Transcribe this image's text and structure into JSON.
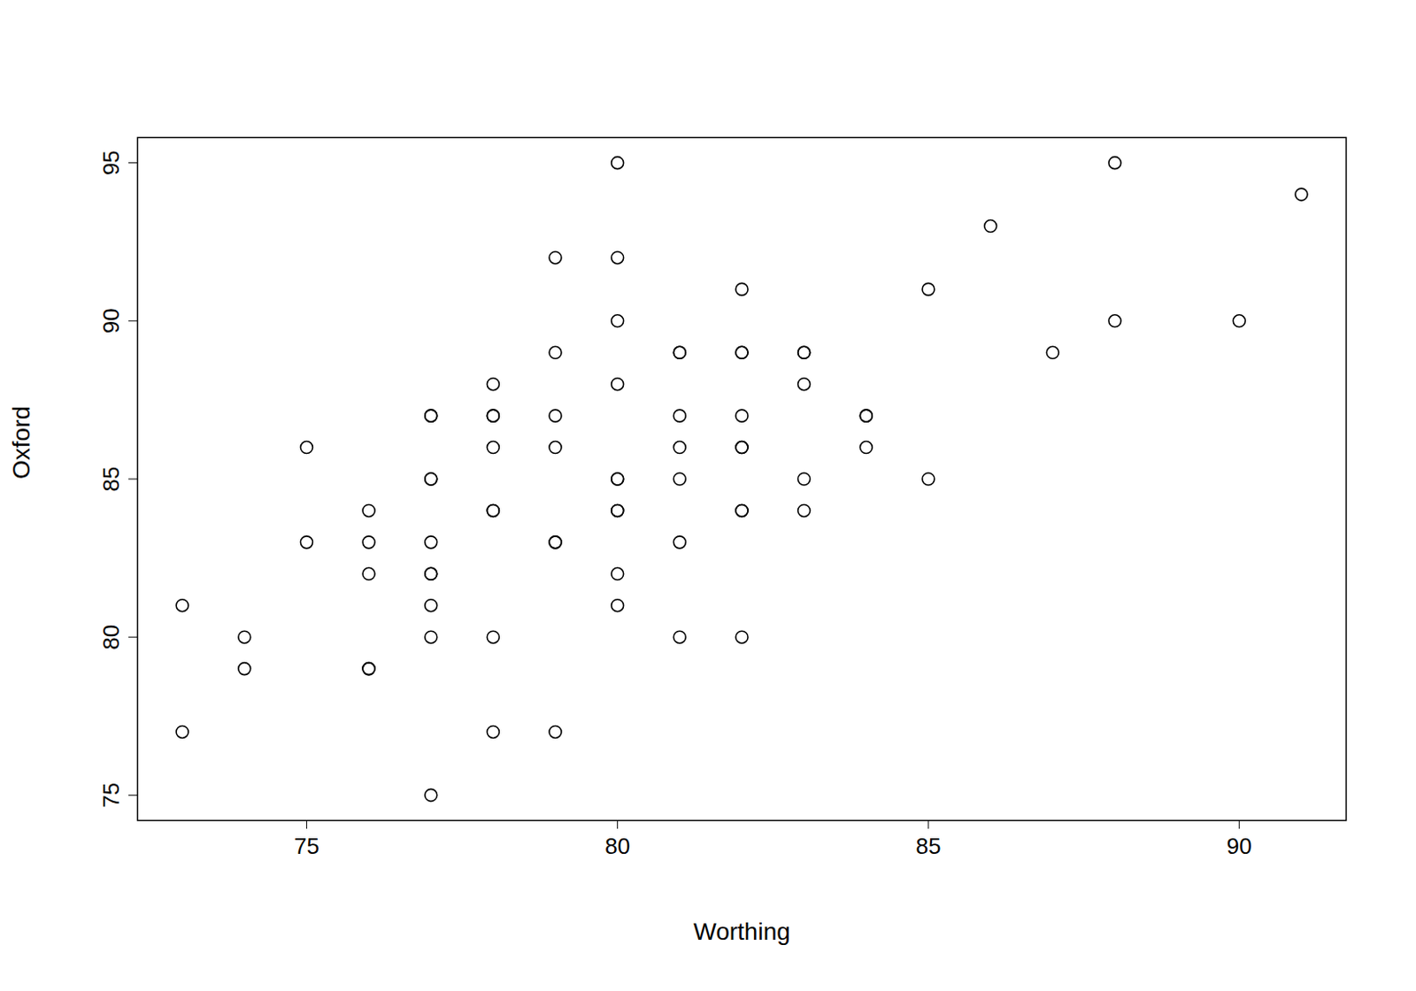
{
  "chart_data": {
    "type": "scatter",
    "x_label": "Worthing",
    "y_label": "Oxford",
    "color": "#000000",
    "marker": "circle-open",
    "grid": false,
    "xlim": [
      72.28,
      91.72
    ],
    "ylim": [
      74.2,
      95.8
    ],
    "xticks": [
      75,
      80,
      85,
      90
    ],
    "yticks": [
      75,
      80,
      85,
      90,
      95
    ],
    "x": [
      73,
      73,
      74,
      74,
      75,
      75,
      76,
      76,
      76,
      76,
      76,
      77,
      77,
      77,
      77,
      77,
      77,
      77,
      77,
      77,
      77,
      78,
      78,
      78,
      78,
      78,
      78,
      78,
      78,
      79,
      79,
      79,
      79,
      79,
      79,
      79,
      80,
      80,
      80,
      80,
      80,
      80,
      80,
      80,
      80,
      80,
      81,
      81,
      81,
      81,
      81,
      81,
      81,
      82,
      82,
      82,
      82,
      82,
      82,
      82,
      82,
      82,
      83,
      83,
      83,
      83,
      83,
      84,
      84,
      84,
      85,
      85,
      86,
      87,
      88,
      88,
      90,
      91
    ],
    "values": [
      81,
      77,
      80,
      79,
      86,
      83,
      84,
      83,
      82,
      79,
      79,
      87,
      87,
      85,
      85,
      83,
      82,
      82,
      81,
      80,
      75,
      88,
      87,
      87,
      86,
      84,
      84,
      80,
      77,
      92,
      89,
      87,
      86,
      83,
      83,
      77,
      95,
      92,
      90,
      88,
      85,
      85,
      84,
      84,
      82,
      81,
      89,
      89,
      87,
      86,
      85,
      83,
      80,
      91,
      89,
      89,
      87,
      86,
      86,
      84,
      84,
      80,
      89,
      89,
      88,
      85,
      84,
      87,
      87,
      86,
      91,
      85,
      93,
      89,
      95,
      90,
      90,
      94
    ]
  }
}
